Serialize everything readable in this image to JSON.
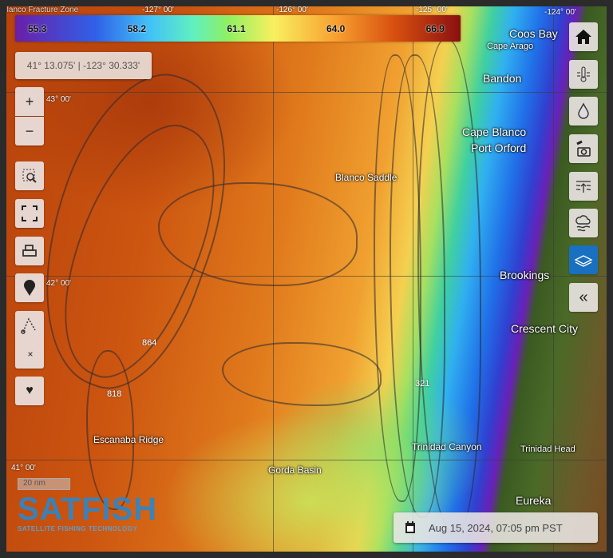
{
  "legend": {
    "ticks": [
      "55.3",
      "58.2",
      "61.1",
      "64.0",
      "66.9"
    ],
    "colors": [
      "#6a1fa8",
      "#3060e8",
      "#40c0f8",
      "#90f060",
      "#f8f060",
      "#f8a030",
      "#d85010",
      "#8a1010"
    ]
  },
  "cursor_coords": "41° 13.075' | -123° 30.333'",
  "grid_labels": {
    "lon": [
      "-127° 00'",
      "-126° 00'",
      "-125° 00'",
      "-124° 00'"
    ],
    "lat": [
      "43° 00'",
      "42° 00'",
      "41° 00'"
    ]
  },
  "places": {
    "blanco_fracture": "Blanco Fracture Zone",
    "coos_bay": "Coos Bay",
    "cape_arago": "Cape Arago",
    "bandon": "Bandon",
    "cape_blanco": "Cape Blanco",
    "port_orford": "Port Orford",
    "blanco_saddle": "Blanco Saddle",
    "brookings": "Brookings",
    "crescent_city": "Crescent City",
    "trinidad_head": "Trinidad Head",
    "eureka": "Eureka",
    "escanaba": "Escanaba Ridge",
    "gorda": "Gorda Basin",
    "trinidad_canyon": "Trinidad Canyon"
  },
  "depths": [
    "864",
    "818",
    "321"
  ],
  "left_toolbar": [
    "zoom-in",
    "zoom-out",
    "zoom-area",
    "fullscreen",
    "print",
    "marker",
    "measure",
    "clear",
    "favorite"
  ],
  "right_toolbar": [
    "home",
    "sea-surface-temperature",
    "chlorophyll",
    "satellite-imagery",
    "currents",
    "weather",
    "bathymetry-layers",
    "collapse"
  ],
  "right_toolbar_active": "bathymetry-layers",
  "scale": "20 nm",
  "logo": {
    "name": "SATFISH",
    "tagline": "SATELLITE FISHING TECHNOLOGY"
  },
  "date": "Aug 15, 2024, 07:05 pm PST"
}
